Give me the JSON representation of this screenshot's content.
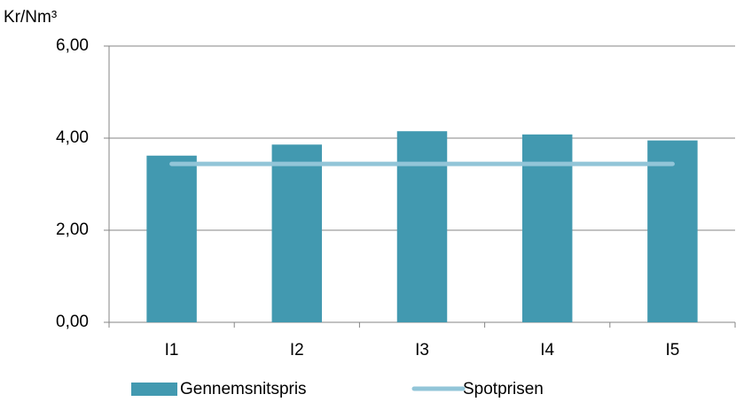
{
  "chart_data": {
    "type": "bar",
    "y_label": "Kr/Nm³",
    "categories": [
      "I1",
      "I2",
      "I3",
      "I4",
      "I5"
    ],
    "series": [
      {
        "name": "Gennemsnitspris",
        "type": "bar",
        "color": "#4299b0",
        "values": [
          3.62,
          3.86,
          4.15,
          4.08,
          3.95
        ]
      },
      {
        "name": "Spotprisen",
        "type": "line",
        "color": "#92c5d8",
        "values": [
          3.44,
          3.44,
          3.44,
          3.44,
          3.44
        ]
      }
    ],
    "ylim": [
      0,
      6
    ],
    "yticks": [
      {
        "value": 0,
        "label": "0,00"
      },
      {
        "value": 2,
        "label": "2,00"
      },
      {
        "value": 4,
        "label": "4,00"
      },
      {
        "value": 6,
        "label": "6,00"
      }
    ],
    "grid": true,
    "legend": "bottom"
  }
}
